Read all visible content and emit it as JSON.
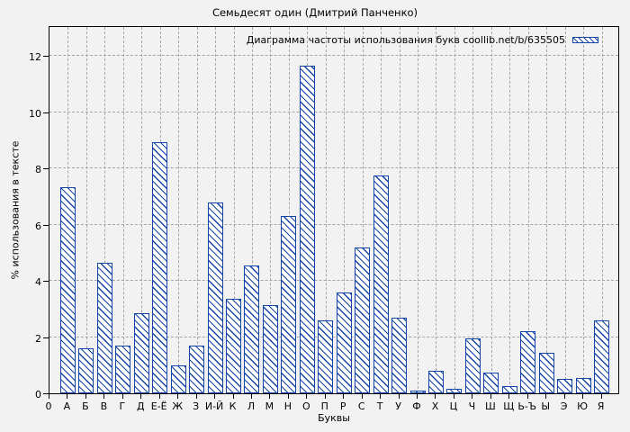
{
  "figure": {
    "title": "Семьдесят один (Дмитрий Панченко)"
  },
  "chart_data": {
    "type": "bar",
    "title": "Семьдесят один (Дмитрий Панченко)",
    "legend": "Диаграмма частоты использования букв coollib.net/b/635505",
    "legend_position": "top-right",
    "xlabel": "Буквы",
    "ylabel": "% использования в тексте",
    "origin_tick_label": "0",
    "categories": [
      "А",
      "Б",
      "В",
      "Г",
      "Д",
      "Е-Ё",
      "Ж",
      "З",
      "И-Й",
      "К",
      "Л",
      "М",
      "Н",
      "О",
      "П",
      "Р",
      "С",
      "Т",
      "У",
      "Ф",
      "Х",
      "Ц",
      "Ч",
      "Ш",
      "Щ",
      "Ь-Ъ",
      "Ы",
      "Э",
      "Ю",
      "Я"
    ],
    "values": [
      7.35,
      1.6,
      4.65,
      1.7,
      2.85,
      8.95,
      1.0,
      1.7,
      6.8,
      3.35,
      4.55,
      3.15,
      6.3,
      11.65,
      2.6,
      3.6,
      5.2,
      7.75,
      2.7,
      0.1,
      0.8,
      0.15,
      1.95,
      0.75,
      0.25,
      2.2,
      1.45,
      0.5,
      0.55,
      2.6
    ],
    "yticks": [
      0,
      2,
      4,
      6,
      8,
      10,
      12
    ],
    "ylim": [
      0,
      13.1
    ],
    "grid": true,
    "bar_fill": "#ffffff",
    "bar_hatch": "diagonal-backslash",
    "accent_color": "#1245a5",
    "gridline_color": "#a6a6a6",
    "frame_color": "#000000",
    "background_color": "#f2f2f2"
  }
}
